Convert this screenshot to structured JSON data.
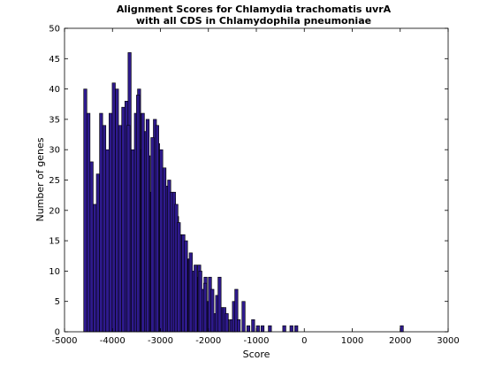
{
  "chart_data": {
    "type": "bar",
    "title_line1": "Alignment Scores for Chlamydia trachomatis uvrA",
    "title_line2": "with all CDS in Chlamydophila pneumoniae",
    "xlabel": "Score",
    "ylabel": "Number of genes",
    "xlim": [
      -5000,
      3000
    ],
    "ylim": [
      0,
      50
    ],
    "xticks": [
      "-5000",
      "-4000",
      "-3000",
      "-2000",
      "-1000",
      "0",
      "1000",
      "2000",
      "3000"
    ],
    "yticks": [
      "0",
      "5",
      "10",
      "15",
      "20",
      "25",
      "30",
      "35",
      "40",
      "45",
      "50"
    ],
    "bin_start": -4600,
    "bin_width": 66,
    "counts": [
      40,
      36,
      28,
      21,
      26,
      36,
      34,
      30,
      36,
      41,
      40,
      34,
      37,
      38,
      46,
      30,
      36,
      40,
      30,
      33,
      29,
      23,
      35,
      31,
      30,
      27,
      24,
      22,
      22,
      19,
      16,
      16,
      12,
      12,
      10,
      9,
      11,
      7,
      9,
      5,
      4,
      3,
      2,
      4,
      2,
      2,
      0,
      1,
      0,
      0,
      0,
      0,
      0,
      0,
      0,
      0,
      1,
      0,
      0,
      0,
      0,
      0,
      0,
      0,
      0,
      0,
      0,
      0,
      0,
      0,
      0,
      0,
      0,
      0,
      0,
      0,
      0,
      0,
      0,
      0,
      0,
      0,
      0,
      0,
      0,
      0,
      0,
      0,
      0,
      0,
      0,
      0,
      0,
      0,
      0,
      0,
      0,
      0,
      0,
      0,
      0,
      0,
      0,
      0,
      0,
      0,
      0,
      0,
      0,
      0,
      0,
      0,
      0,
      0,
      0,
      0
    ],
    "extra_bins": [
      {
        "x": -3700,
        "count": 34
      },
      {
        "x": -3500,
        "count": 39
      },
      {
        "x": -3400,
        "count": 36
      },
      {
        "x": -3300,
        "count": 35
      },
      {
        "x": -3200,
        "count": 32
      },
      {
        "x": -3100,
        "count": 34
      },
      {
        "x": -2950,
        "count": 27
      },
      {
        "x": -2850,
        "count": 25
      },
      {
        "x": -2800,
        "count": 23
      },
      {
        "x": -2750,
        "count": 23
      },
      {
        "x": -2700,
        "count": 21
      },
      {
        "x": -2650,
        "count": 18
      },
      {
        "x": -2500,
        "count": 15
      },
      {
        "x": -2400,
        "count": 13
      },
      {
        "x": -2300,
        "count": 11
      },
      {
        "x": -2200,
        "count": 10
      },
      {
        "x": -2100,
        "count": 8
      },
      {
        "x": -2000,
        "count": 9
      },
      {
        "x": -1950,
        "count": 7
      },
      {
        "x": -1850,
        "count": 6
      },
      {
        "x": -1800,
        "count": 9
      },
      {
        "x": -1700,
        "count": 4
      },
      {
        "x": -1650,
        "count": 3
      },
      {
        "x": -1550,
        "count": 2
      },
      {
        "x": -1500,
        "count": 5
      },
      {
        "x": -1450,
        "count": 7
      },
      {
        "x": -1400,
        "count": 2
      },
      {
        "x": -1300,
        "count": 5
      },
      {
        "x": -1200,
        "count": 1
      },
      {
        "x": -1100,
        "count": 2
      },
      {
        "x": -1000,
        "count": 1
      },
      {
        "x": -750,
        "count": 1
      },
      {
        "x": -450,
        "count": 1
      },
      {
        "x": -300,
        "count": 1
      },
      {
        "x": -200,
        "count": 1
      },
      {
        "x": 2000,
        "count": 1
      }
    ],
    "bar_fill": "#2e1a8c",
    "bar_edge": "#000000",
    "grid": false
  }
}
